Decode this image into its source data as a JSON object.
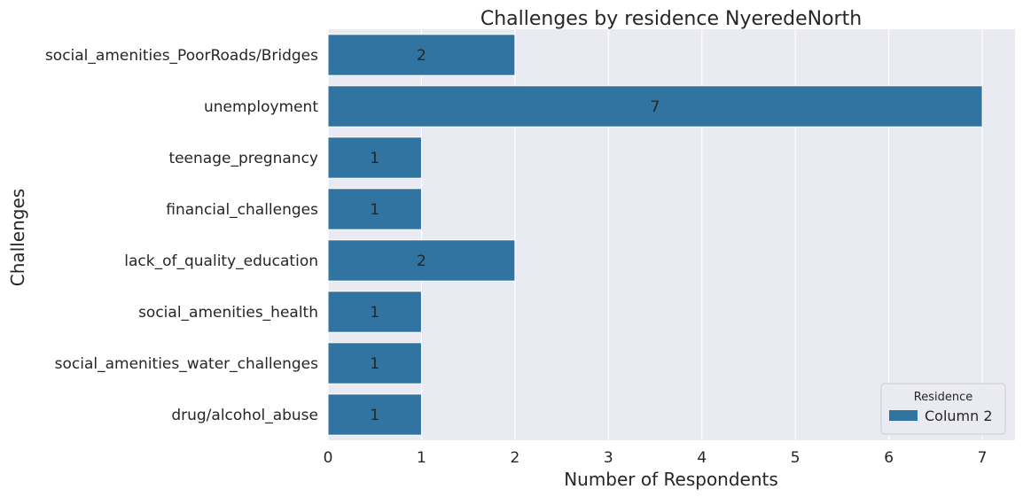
{
  "chart_data": {
    "type": "bar",
    "orientation": "horizontal",
    "title": "Challenges by residence NyeredeNorth",
    "xlabel": "Number of Respondents",
    "ylabel": "Challenges",
    "categories": [
      "social_amenities_PoorRoads/Bridges",
      "unemployment",
      "teenage_pregnancy",
      "financial_challenges",
      "lack_of_quality_education",
      "social_amenities_health",
      "social_amenities_water_challenges",
      "drug/alcohol_abuse"
    ],
    "series": [
      {
        "name": "Column 2",
        "values": [
          2,
          7,
          1,
          1,
          2,
          1,
          1,
          1
        ]
      }
    ],
    "xlim": [
      0,
      7.35
    ],
    "xticks": [
      0,
      1,
      2,
      3,
      4,
      5,
      6,
      7
    ],
    "grid": true,
    "legend": {
      "title": "Residence",
      "placement": "bottom-right"
    },
    "colors": {
      "bar": "#3274a1",
      "plot_background": "#eaeaf2",
      "grid": "#ffffff"
    }
  }
}
